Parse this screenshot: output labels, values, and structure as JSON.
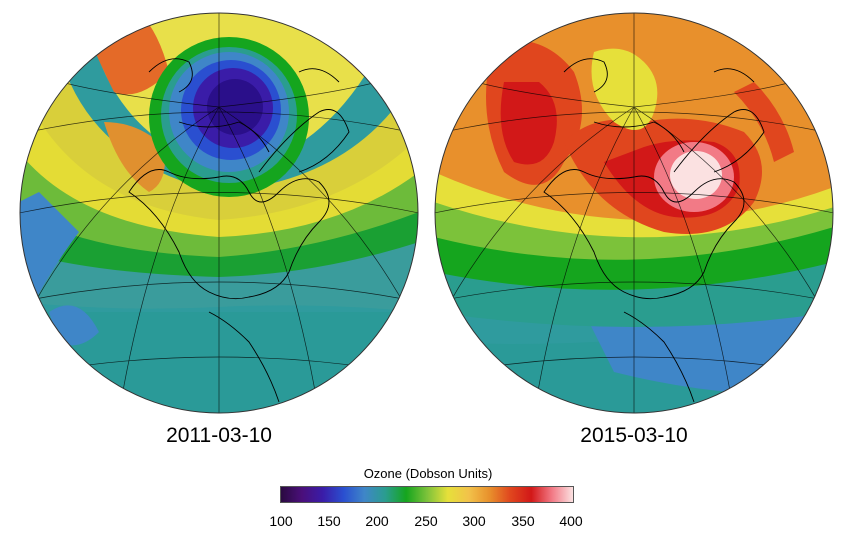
{
  "maps": [
    {
      "date": "2011-03-10",
      "feature": "polar ozone hole (low ozone ~150-200 DU over Arctic)"
    },
    {
      "date": "2015-03-10",
      "feature": "high ozone (~350-400 DU over Arctic / Hudson Bay)"
    }
  ],
  "colorbar": {
    "title": "Ozone (Dobson Units)",
    "min": 100,
    "max": 400,
    "ticks": [
      "100",
      "150",
      "200",
      "250",
      "300",
      "350",
      "400"
    ],
    "colors": [
      "#2a0a40",
      "#4a0f7a",
      "#3a1ca8",
      "#2a4fd0",
      "#3f86c8",
      "#2a9d8f",
      "#15a51e",
      "#7cc23a",
      "#e6e03a",
      "#f2c24a",
      "#e8902c",
      "#e0461e",
      "#d21818",
      "#f27a86",
      "#fbe1e1"
    ]
  },
  "colors": {
    "ozone_hole": "#3a1ca8",
    "high_ozone": "#d21818",
    "peak_ozone": "#fbe1e1",
    "background": "#2a9d8f"
  }
}
